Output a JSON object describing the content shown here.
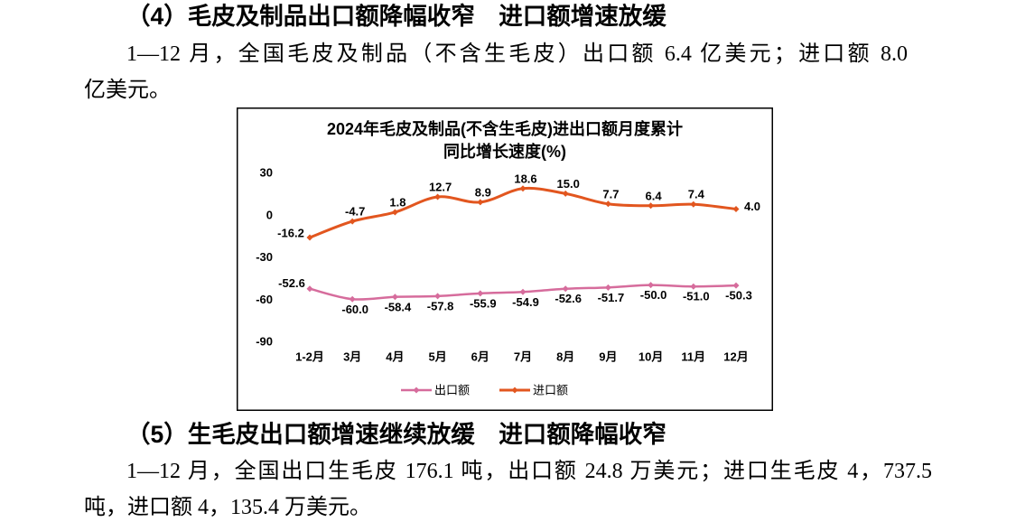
{
  "section_4": {
    "heading": "（4）毛皮及制品出口额降幅收窄　进口额增速放缓",
    "paragraph_lines": [
      "1—12 月，全国毛皮及制品（不含生毛皮）出口额 6.4 亿美元；进口额 8.0",
      "亿美元。"
    ]
  },
  "chart_data": {
    "type": "line",
    "title_lines": [
      "2024年毛皮及制品(不含生毛皮)进出口额月度累计",
      "同比增长速度(%)"
    ],
    "xlabel": "",
    "ylabel": "",
    "categories": [
      "1-2月",
      "3月",
      "4月",
      "5月",
      "6月",
      "7月",
      "8月",
      "9月",
      "10月",
      "11月",
      "12月"
    ],
    "ylim": [
      -90,
      30
    ],
    "yticks": [
      30,
      0,
      -30,
      -60,
      -90
    ],
    "grid": false,
    "legend": "bottom",
    "series": [
      {
        "name": "出口额",
        "color": "#D66C9C",
        "values": [
          -52.6,
          -60.0,
          -58.4,
          -57.8,
          -55.9,
          -54.9,
          -52.6,
          -51.7,
          -50.0,
          -51.0,
          -50.3
        ],
        "labels": [
          "-52.6",
          "-60.0",
          "-58.4",
          "-57.8",
          "-55.9",
          "-54.9",
          "-52.6",
          "-51.7",
          "-50.0",
          "-51.0",
          "-50.3"
        ]
      },
      {
        "name": "进口额",
        "color": "#E2561F",
        "values": [
          -16.2,
          -4.7,
          1.8,
          12.7,
          8.9,
          18.6,
          15.0,
          7.7,
          6.4,
          7.4,
          4.0
        ],
        "labels": [
          "-16.2",
          "-4.7",
          "1.8",
          "12.7",
          "8.9",
          "18.6",
          "15.0",
          "7.7",
          "6.4",
          "7.4",
          "4.0"
        ]
      }
    ]
  },
  "section_5": {
    "heading": "（5）生毛皮出口额增速继续放缓　进口额降幅收窄",
    "paragraph_lines": [
      "1—12 月，全国出口生毛皮 176.1 吨，出口额 24.8 万美元；进口生毛皮 4，737.5",
      "吨，进口额 4，135.4 万美元。"
    ]
  }
}
